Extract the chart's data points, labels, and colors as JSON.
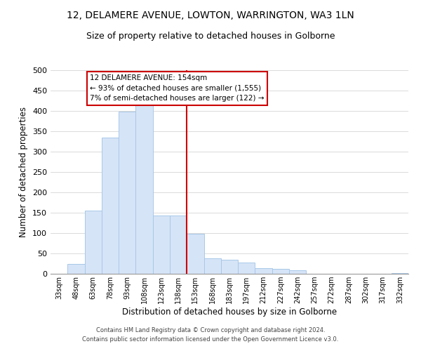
{
  "title": "12, DELAMERE AVENUE, LOWTON, WARRINGTON, WA3 1LN",
  "subtitle": "Size of property relative to detached houses in Golborne",
  "xlabel": "Distribution of detached houses by size in Golborne",
  "ylabel": "Number of detached properties",
  "bar_labels": [
    "33sqm",
    "48sqm",
    "63sqm",
    "78sqm",
    "93sqm",
    "108sqm",
    "123sqm",
    "138sqm",
    "153sqm",
    "168sqm",
    "183sqm",
    "197sqm",
    "212sqm",
    "227sqm",
    "242sqm",
    "257sqm",
    "272sqm",
    "287sqm",
    "302sqm",
    "317sqm",
    "332sqm"
  ],
  "bar_values": [
    0,
    25,
    155,
    335,
    398,
    413,
    143,
    143,
    99,
    38,
    35,
    28,
    13,
    12,
    8,
    0,
    0,
    0,
    0,
    0,
    2
  ],
  "bar_color": "#d6e4f7",
  "bar_edge_color": "#a8c8e8",
  "vline_color": "#cc0000",
  "ylim": [
    0,
    500
  ],
  "yticks": [
    0,
    50,
    100,
    150,
    200,
    250,
    300,
    350,
    400,
    450,
    500
  ],
  "annotation_title": "12 DELAMERE AVENUE: 154sqm",
  "annotation_line1": "← 93% of detached houses are smaller (1,555)",
  "annotation_line2": "7% of semi-detached houses are larger (122) →",
  "annotation_box_color": "#ffffff",
  "annotation_box_edge": "#cc0000",
  "footer_line1": "Contains HM Land Registry data © Crown copyright and database right 2024.",
  "footer_line2": "Contains public sector information licensed under the Open Government Licence v3.0.",
  "vline_index": 8,
  "title_fontsize": 10,
  "subtitle_fontsize": 9
}
